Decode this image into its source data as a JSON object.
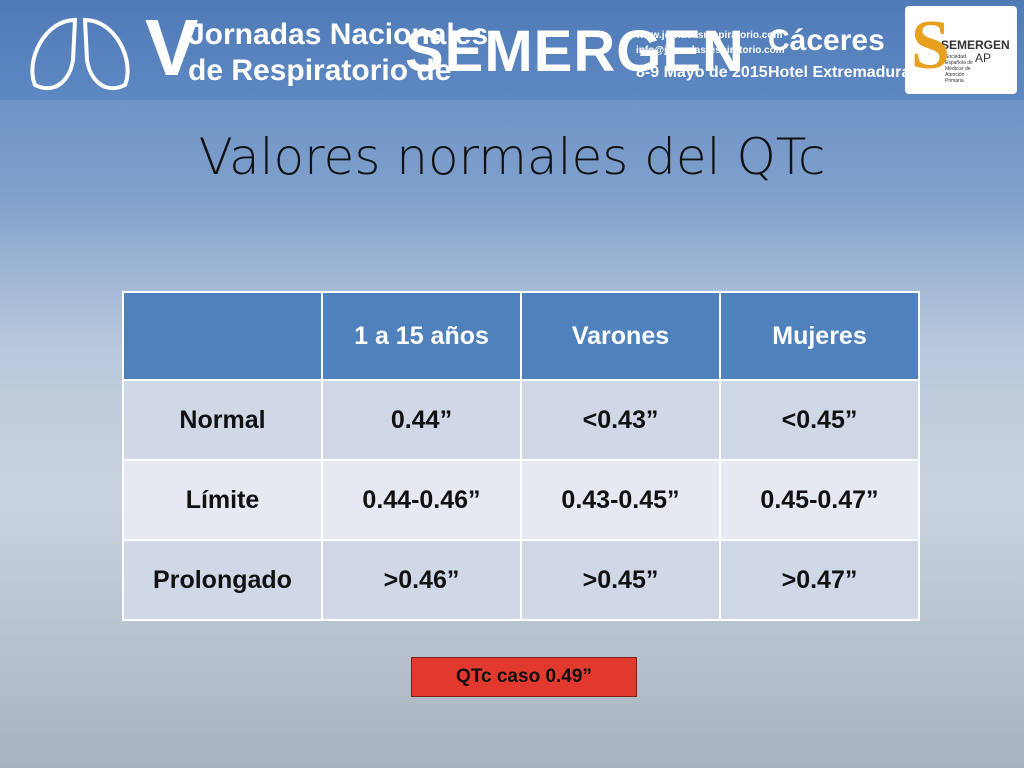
{
  "banner": {
    "numeral": "V",
    "line1": "Jornadas Nacionales",
    "line2": "de Respiratorio de",
    "brand": "SEMERGEN",
    "web": "www.jornadasrespiratorio.com",
    "email": "info@jornadasrespiratorio.com",
    "dates": "8-9 Mayo de 2015",
    "city": "Cáceres",
    "venue": "Hotel Extremadura",
    "logo": {
      "name": "SEMERGEN",
      "suffix": "AP",
      "society": "Sociedad Española de Médicos de Atención Primaria"
    }
  },
  "title": "Valores normales del  QTc",
  "table": {
    "columns": [
      "1 a 15 años",
      "Varones",
      "Mujeres"
    ],
    "rows": [
      [
        "Normal",
        "0.44”",
        "<0.43”",
        "<0.45”"
      ],
      [
        "Límite",
        "0.44-0.46”",
        "0.43-0.45”",
        "0.45-0.47”"
      ],
      [
        "Prolongado",
        ">0.46”",
        ">0.45”",
        ">0.47”"
      ]
    ]
  },
  "note": "QTc caso 0.49”"
}
